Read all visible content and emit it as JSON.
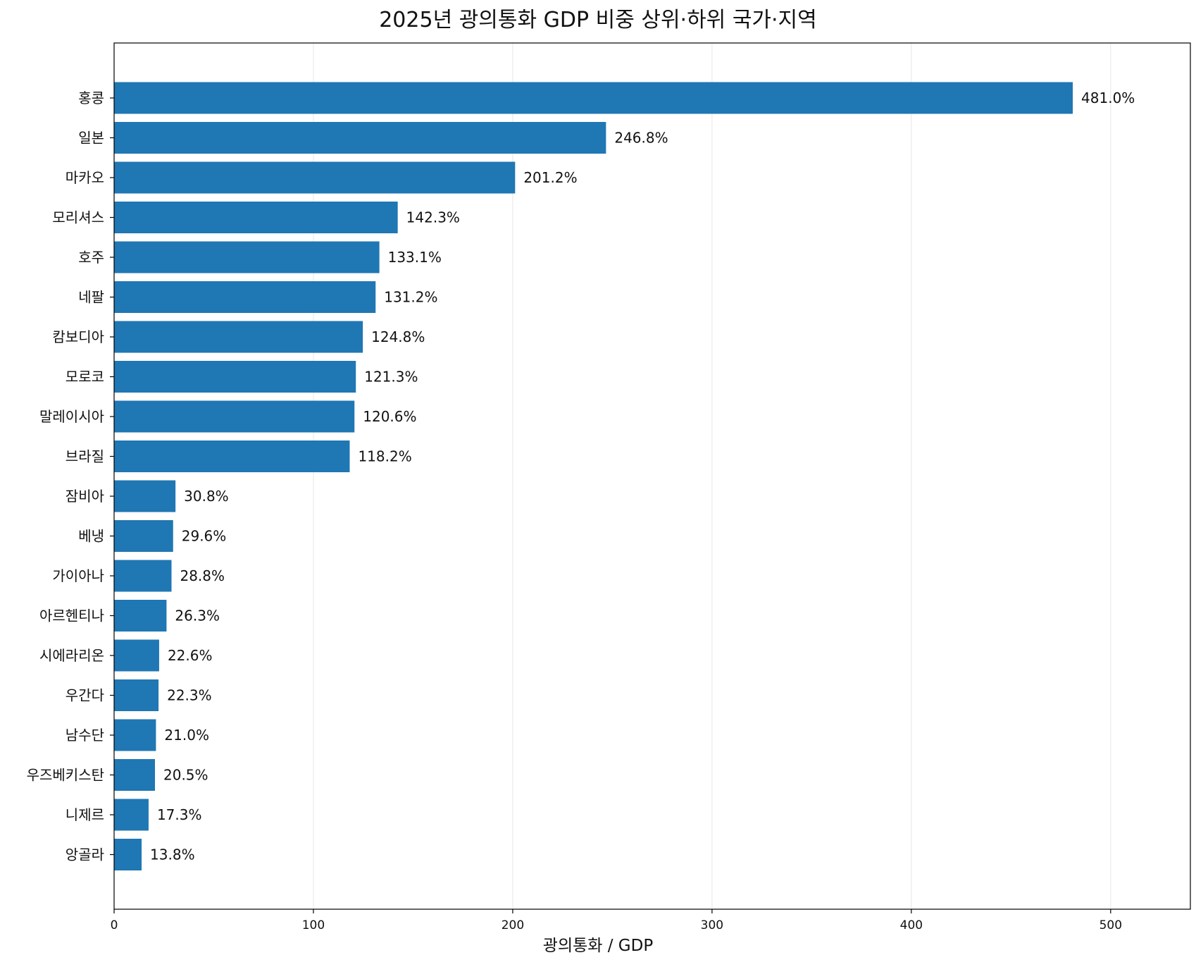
{
  "chart_data": {
    "type": "bar",
    "orientation": "horizontal",
    "title": "2025년 광의통화 GDP 비중 상위·하위 국가·지역",
    "xlabel": "광의통화 / GDP",
    "ylabel": "",
    "xlim": [
      0,
      540
    ],
    "xticks": [
      0,
      100,
      200,
      300,
      400,
      500
    ],
    "grid": "vertical",
    "bar_color": "#1f77b4",
    "categories": [
      "홍콩",
      "일본",
      "마카오",
      "모리셔스",
      "호주",
      "네팔",
      "캄보디아",
      "모로코",
      "말레이시아",
      "브라질",
      "잠비아",
      "베냉",
      "가이아나",
      "아르헨티나",
      "시에라리온",
      "우간다",
      "남수단",
      "우즈베키스탄",
      "니제르",
      "앙골라"
    ],
    "values": [
      481.0,
      246.8,
      201.2,
      142.3,
      133.1,
      131.2,
      124.8,
      121.3,
      120.6,
      118.2,
      30.8,
      29.6,
      28.8,
      26.3,
      22.6,
      22.3,
      21.0,
      20.5,
      17.3,
      13.8
    ],
    "data_labels": [
      "481.0%",
      "246.8%",
      "201.2%",
      "142.3%",
      "133.1%",
      "131.2%",
      "124.8%",
      "121.3%",
      "120.6%",
      "118.2%",
      "30.8%",
      "29.6%",
      "28.8%",
      "26.3%",
      "22.6%",
      "22.3%",
      "21.0%",
      "20.5%",
      "17.3%",
      "13.8%"
    ]
  }
}
